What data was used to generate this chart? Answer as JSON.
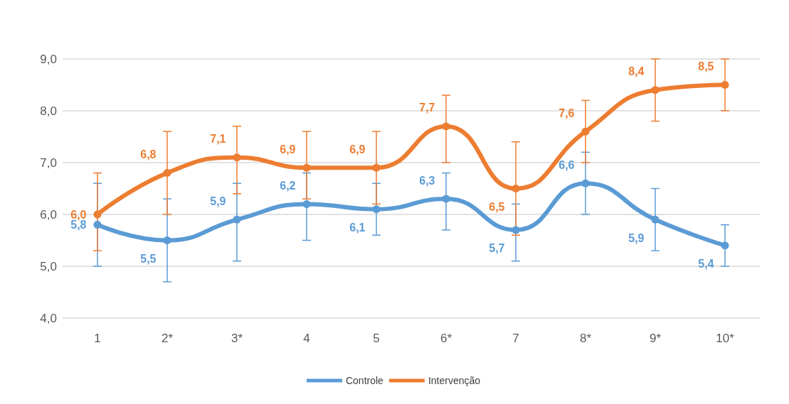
{
  "chart_data": {
    "type": "line",
    "categories": [
      "1",
      "2*",
      "3*",
      "4",
      "5",
      "6*",
      "7",
      "8*",
      "9*",
      "10*"
    ],
    "series": [
      {
        "name": "Controle",
        "color": "#5b9bd5",
        "values": [
          5.8,
          5.5,
          5.9,
          6.2,
          6.1,
          6.3,
          5.7,
          6.6,
          5.9,
          5.4
        ],
        "value_labels": [
          "5,8",
          "5,5",
          "5,9",
          "6,2",
          "6,1",
          "6,3",
          "5,7",
          "6,6",
          "5,9",
          "5,4"
        ],
        "errors": [
          [
            5.0,
            6.6
          ],
          [
            4.7,
            6.3
          ],
          [
            5.1,
            6.6
          ],
          [
            5.5,
            6.8
          ],
          [
            5.6,
            6.6
          ],
          [
            5.7,
            6.8
          ],
          [
            5.1,
            6.2
          ],
          [
            6.0,
            7.2
          ],
          [
            5.3,
            6.5
          ],
          [
            5.0,
            5.8
          ]
        ]
      },
      {
        "name": "Intervenção",
        "color": "#ed7d31",
        "values": [
          6.0,
          6.8,
          7.1,
          6.9,
          6.9,
          7.7,
          6.5,
          7.6,
          8.4,
          8.5
        ],
        "value_labels": [
          "6,0",
          "6,8",
          "7,1",
          "6,9",
          "6,9",
          "7,7",
          "6,5",
          "7,6",
          "8,4",
          "8,5"
        ],
        "errors": [
          [
            5.3,
            6.8
          ],
          [
            6.0,
            7.6
          ],
          [
            6.4,
            7.7
          ],
          [
            6.3,
            7.6
          ],
          [
            6.2,
            7.6
          ],
          [
            7.0,
            8.3
          ],
          [
            5.6,
            7.4
          ],
          [
            7.0,
            8.2
          ],
          [
            7.8,
            9.0
          ],
          [
            8.0,
            9.0
          ]
        ]
      }
    ],
    "ylim": [
      4,
      9
    ],
    "yticks": [
      {
        "value": 4,
        "label": "4,0"
      },
      {
        "value": 5,
        "label": "5,0"
      },
      {
        "value": 6,
        "label": "6,0"
      },
      {
        "value": 7,
        "label": "7,0"
      },
      {
        "value": 8,
        "label": "8,0"
      },
      {
        "value": 9,
        "label": "9,0"
      }
    ],
    "grid": "y",
    "legend": "bottom",
    "marker": "circle",
    "line_style": "solid"
  }
}
